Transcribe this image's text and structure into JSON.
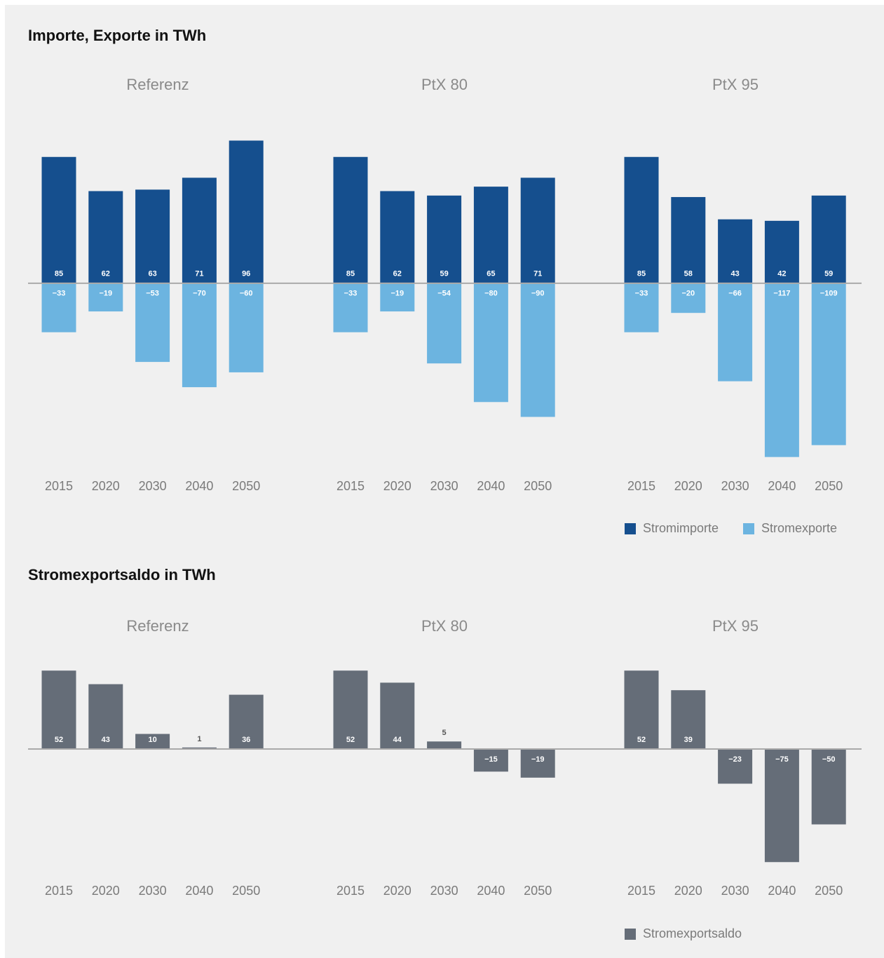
{
  "chart_data": [
    {
      "type": "bar",
      "title": "Importe, Exporte in TWh",
      "panel_titles": [
        "Referenz",
        "PtX 80",
        "PtX 95"
      ],
      "categories": [
        "2015",
        "2020",
        "2030",
        "2040",
        "2050"
      ],
      "ylim": [
        -120,
        100
      ],
      "legend": "bottom-right",
      "series": [
        {
          "name": "Stromimporte",
          "color": "#154f8e",
          "values": [
            [
              85,
              62,
              63,
              71,
              96
            ],
            [
              85,
              62,
              59,
              65,
              71
            ],
            [
              85,
              58,
              43,
              42,
              59
            ]
          ]
        },
        {
          "name": "Stromexporte",
          "color": "#6cb4e0",
          "values": [
            [
              -33,
              -19,
              -53,
              -70,
              -60
            ],
            [
              -33,
              -19,
              -54,
              -80,
              -90
            ],
            [
              -33,
              -20,
              -66,
              -117,
              -109
            ]
          ],
          "value_labels": [
            [
              "−33",
              "−19",
              "−53",
              "−70",
              "−60"
            ],
            [
              "−33",
              "−19",
              "−54",
              "−80",
              "−90"
            ],
            [
              "−33",
              "−20",
              "−66",
              "−117",
              "−109"
            ]
          ]
        }
      ]
    },
    {
      "type": "bar",
      "title": "Stromexportsaldo in TWh",
      "panel_titles": [
        "Referenz",
        "PtX 80",
        "PtX 95"
      ],
      "categories": [
        "2015",
        "2020",
        "2030",
        "2040",
        "2050"
      ],
      "ylim": [
        -80,
        60
      ],
      "legend": "bottom-right",
      "series": [
        {
          "name": "Stromexportsaldo",
          "color": "#656d78",
          "values": [
            [
              52,
              43,
              10,
              1,
              36
            ],
            [
              52,
              44,
              5,
              -15,
              -19
            ],
            [
              52,
              39,
              -23,
              -75,
              -50
            ]
          ],
          "value_labels": [
            [
              "52",
              "43",
              "10",
              "1",
              "36"
            ],
            [
              "52",
              "44",
              "5",
              "−15",
              "−19"
            ],
            [
              "52",
              "39",
              "−23",
              "−75",
              "−50"
            ]
          ]
        }
      ]
    }
  ]
}
